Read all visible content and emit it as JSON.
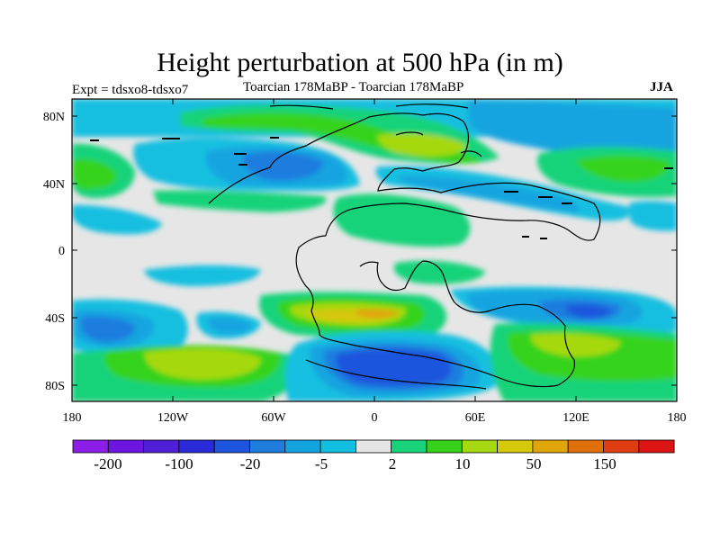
{
  "header": {
    "title": "Height perturbation at 500 hPa (in m)",
    "left_label": "Expt = tdsxo8-tdsxo7",
    "center_label": "Toarcian 178MaBP - Toarcian 178MaBP",
    "right_label": "JJA"
  },
  "axes": {
    "x_ticks": [
      "180",
      "120W",
      "60W",
      "0",
      "60E",
      "120E",
      "180"
    ],
    "y_ticks": [
      "80N",
      "40N",
      "0",
      "40S",
      "80S"
    ]
  },
  "colorbar": {
    "colors": [
      "#8a1ee6",
      "#6e14e0",
      "#4f1ed7",
      "#2a2ad8",
      "#1f55dd",
      "#1f7ddf",
      "#13a4e0",
      "#12bfe0",
      "#e6e6e6",
      "#18d37a",
      "#36d31a",
      "#a6d911",
      "#d6c80a",
      "#e0a50a",
      "#e06e0a",
      "#e03c12",
      "#dc1414"
    ],
    "labels": [
      "-200",
      "-100",
      "-20",
      "-5",
      "2",
      "10",
      "50",
      "150"
    ]
  },
  "map": {
    "background_color": "#e6e6e6",
    "palette": {
      "blue_dark": "#2a4ad8",
      "blue_mid": "#1f7ddf",
      "blue_light": "#13a4e0",
      "cyan": "#12bfe0",
      "green_light": "#18d37a",
      "green": "#36d31a",
      "yellow_green": "#a6d911",
      "yellow": "#d6c80a",
      "orange": "#e0a50a"
    }
  }
}
